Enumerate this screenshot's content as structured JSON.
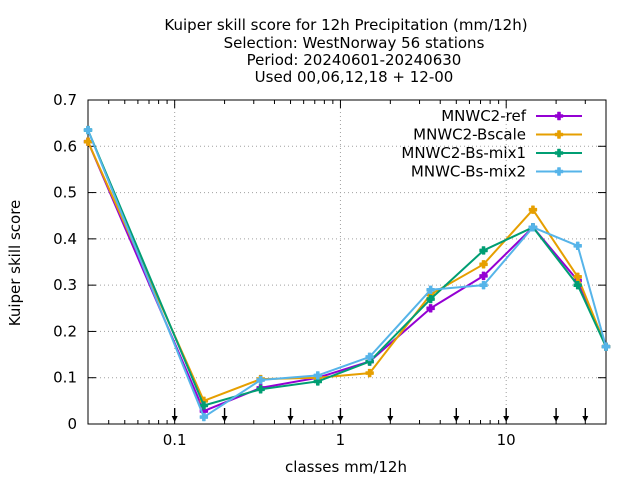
{
  "title_lines": [
    "Kuiper skill score  for 12h Precipitation (mm/12h)",
    "Selection: WestNorway     56 stations",
    "Period: 20240601-20240630",
    "Used 00,06,12,18 + 12-00"
  ],
  "chart_data": {
    "type": "line",
    "xlabel": "classes mm/12h",
    "ylabel": "Kuiper skill score",
    "x_scale": "log",
    "xlim": [
      0.03,
      40
    ],
    "ylim": [
      0,
      0.7
    ],
    "x_ticks": [
      {
        "value": 0.1,
        "label": "0.1"
      },
      {
        "value": 1,
        "label": "1"
      },
      {
        "value": 10,
        "label": "10"
      }
    ],
    "y_ticks": [
      {
        "value": 0,
        "label": "0"
      },
      {
        "value": 0.1,
        "label": "0.1"
      },
      {
        "value": 0.2,
        "label": "0.2"
      },
      {
        "value": 0.3,
        "label": "0.3"
      },
      {
        "value": 0.4,
        "label": "0.4"
      },
      {
        "value": 0.5,
        "label": "0.5"
      },
      {
        "value": 0.6,
        "label": "0.6"
      },
      {
        "value": 0.7,
        "label": "0.7"
      }
    ],
    "grid": true,
    "legend_position": "top-right",
    "class_limit_arrows_x": [
      0.1,
      0.2,
      0.5,
      1,
      2,
      5,
      10,
      20,
      30
    ],
    "x": [
      0.03,
      0.15,
      0.33,
      0.73,
      1.5,
      3.5,
      7.3,
      14.5,
      27,
      40
    ],
    "series": [
      {
        "name": "MNWC2-ref",
        "color": "#9400d3",
        "values": [
          0.61,
          0.028,
          0.078,
          0.1,
          0.135,
          0.25,
          0.32,
          0.425,
          0.31,
          0.167
        ]
      },
      {
        "name": "MNWC2-Bscale",
        "color": "#e69f00",
        "values": [
          0.61,
          0.05,
          0.097,
          0.1,
          0.11,
          0.28,
          0.345,
          0.463,
          0.318,
          0.167
        ]
      },
      {
        "name": "MNWC2-Bs-mix1",
        "color": "#009e73",
        "values": [
          0.635,
          0.04,
          0.075,
          0.092,
          0.135,
          0.27,
          0.375,
          0.425,
          0.3,
          0.167
        ]
      },
      {
        "name": "MNWC-Bs-mix2",
        "color": "#56b4e9",
        "values": [
          0.635,
          0.015,
          0.095,
          0.105,
          0.145,
          0.29,
          0.3,
          0.425,
          0.385,
          0.167
        ]
      }
    ]
  }
}
